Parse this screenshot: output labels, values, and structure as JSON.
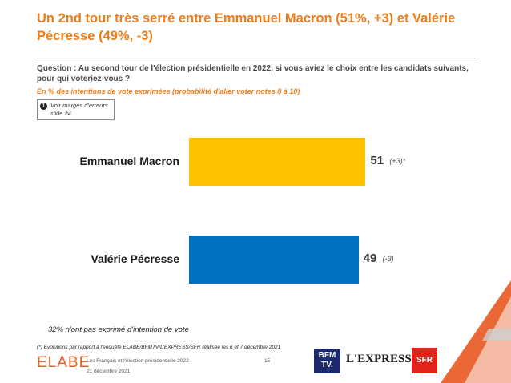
{
  "header": {
    "title": "Un 2nd tour très serré entre Emmanuel Macron (51%, +3) et Valérie Pécresse (49%, -3)",
    "question": "Question : Au second tour de l'élection présidentielle en 2022, si vous aviez le choix entre les candidats suivants, pour qui voteriez-vous ?",
    "subtitle": "En % des intentions de vote exprimées (probabilité d'aller voter notes 8 à 10)"
  },
  "note": {
    "icon": "info-icon",
    "icon_glyph": "1",
    "line1": "Voir marges d'erreurs",
    "line2": "slide 24"
  },
  "chart_data": {
    "type": "bar",
    "orientation": "horizontal",
    "categories": [
      "Emmanuel Macron",
      "Valérie Pécresse"
    ],
    "values": [
      51,
      49
    ],
    "evolutions": [
      "(+3)*",
      "(-3)"
    ],
    "colors": [
      "#ffc000",
      "#0070c0"
    ],
    "xlim": [
      0,
      100
    ],
    "grid": false,
    "title": "",
    "xlabel": "",
    "ylabel": ""
  },
  "footer": {
    "abstention_note": "32% n'ont pas exprimé d'intention de vote",
    "evolution_note": "(*) Evolutions par rapport à l'enquête ELABE/BFMTV/L'EXPRESS/SFR réalisée les 6 et 7 décembre 2021",
    "brand": "ELABE",
    "source": "Les Français et l'élection présidentielle 2022",
    "date": "21 décembre 2021",
    "page": "15"
  },
  "partners": {
    "bfm_line1": "BFM",
    "bfm_line2": "TV.",
    "express": "L'EXPRESS",
    "sfr": "SFR"
  }
}
